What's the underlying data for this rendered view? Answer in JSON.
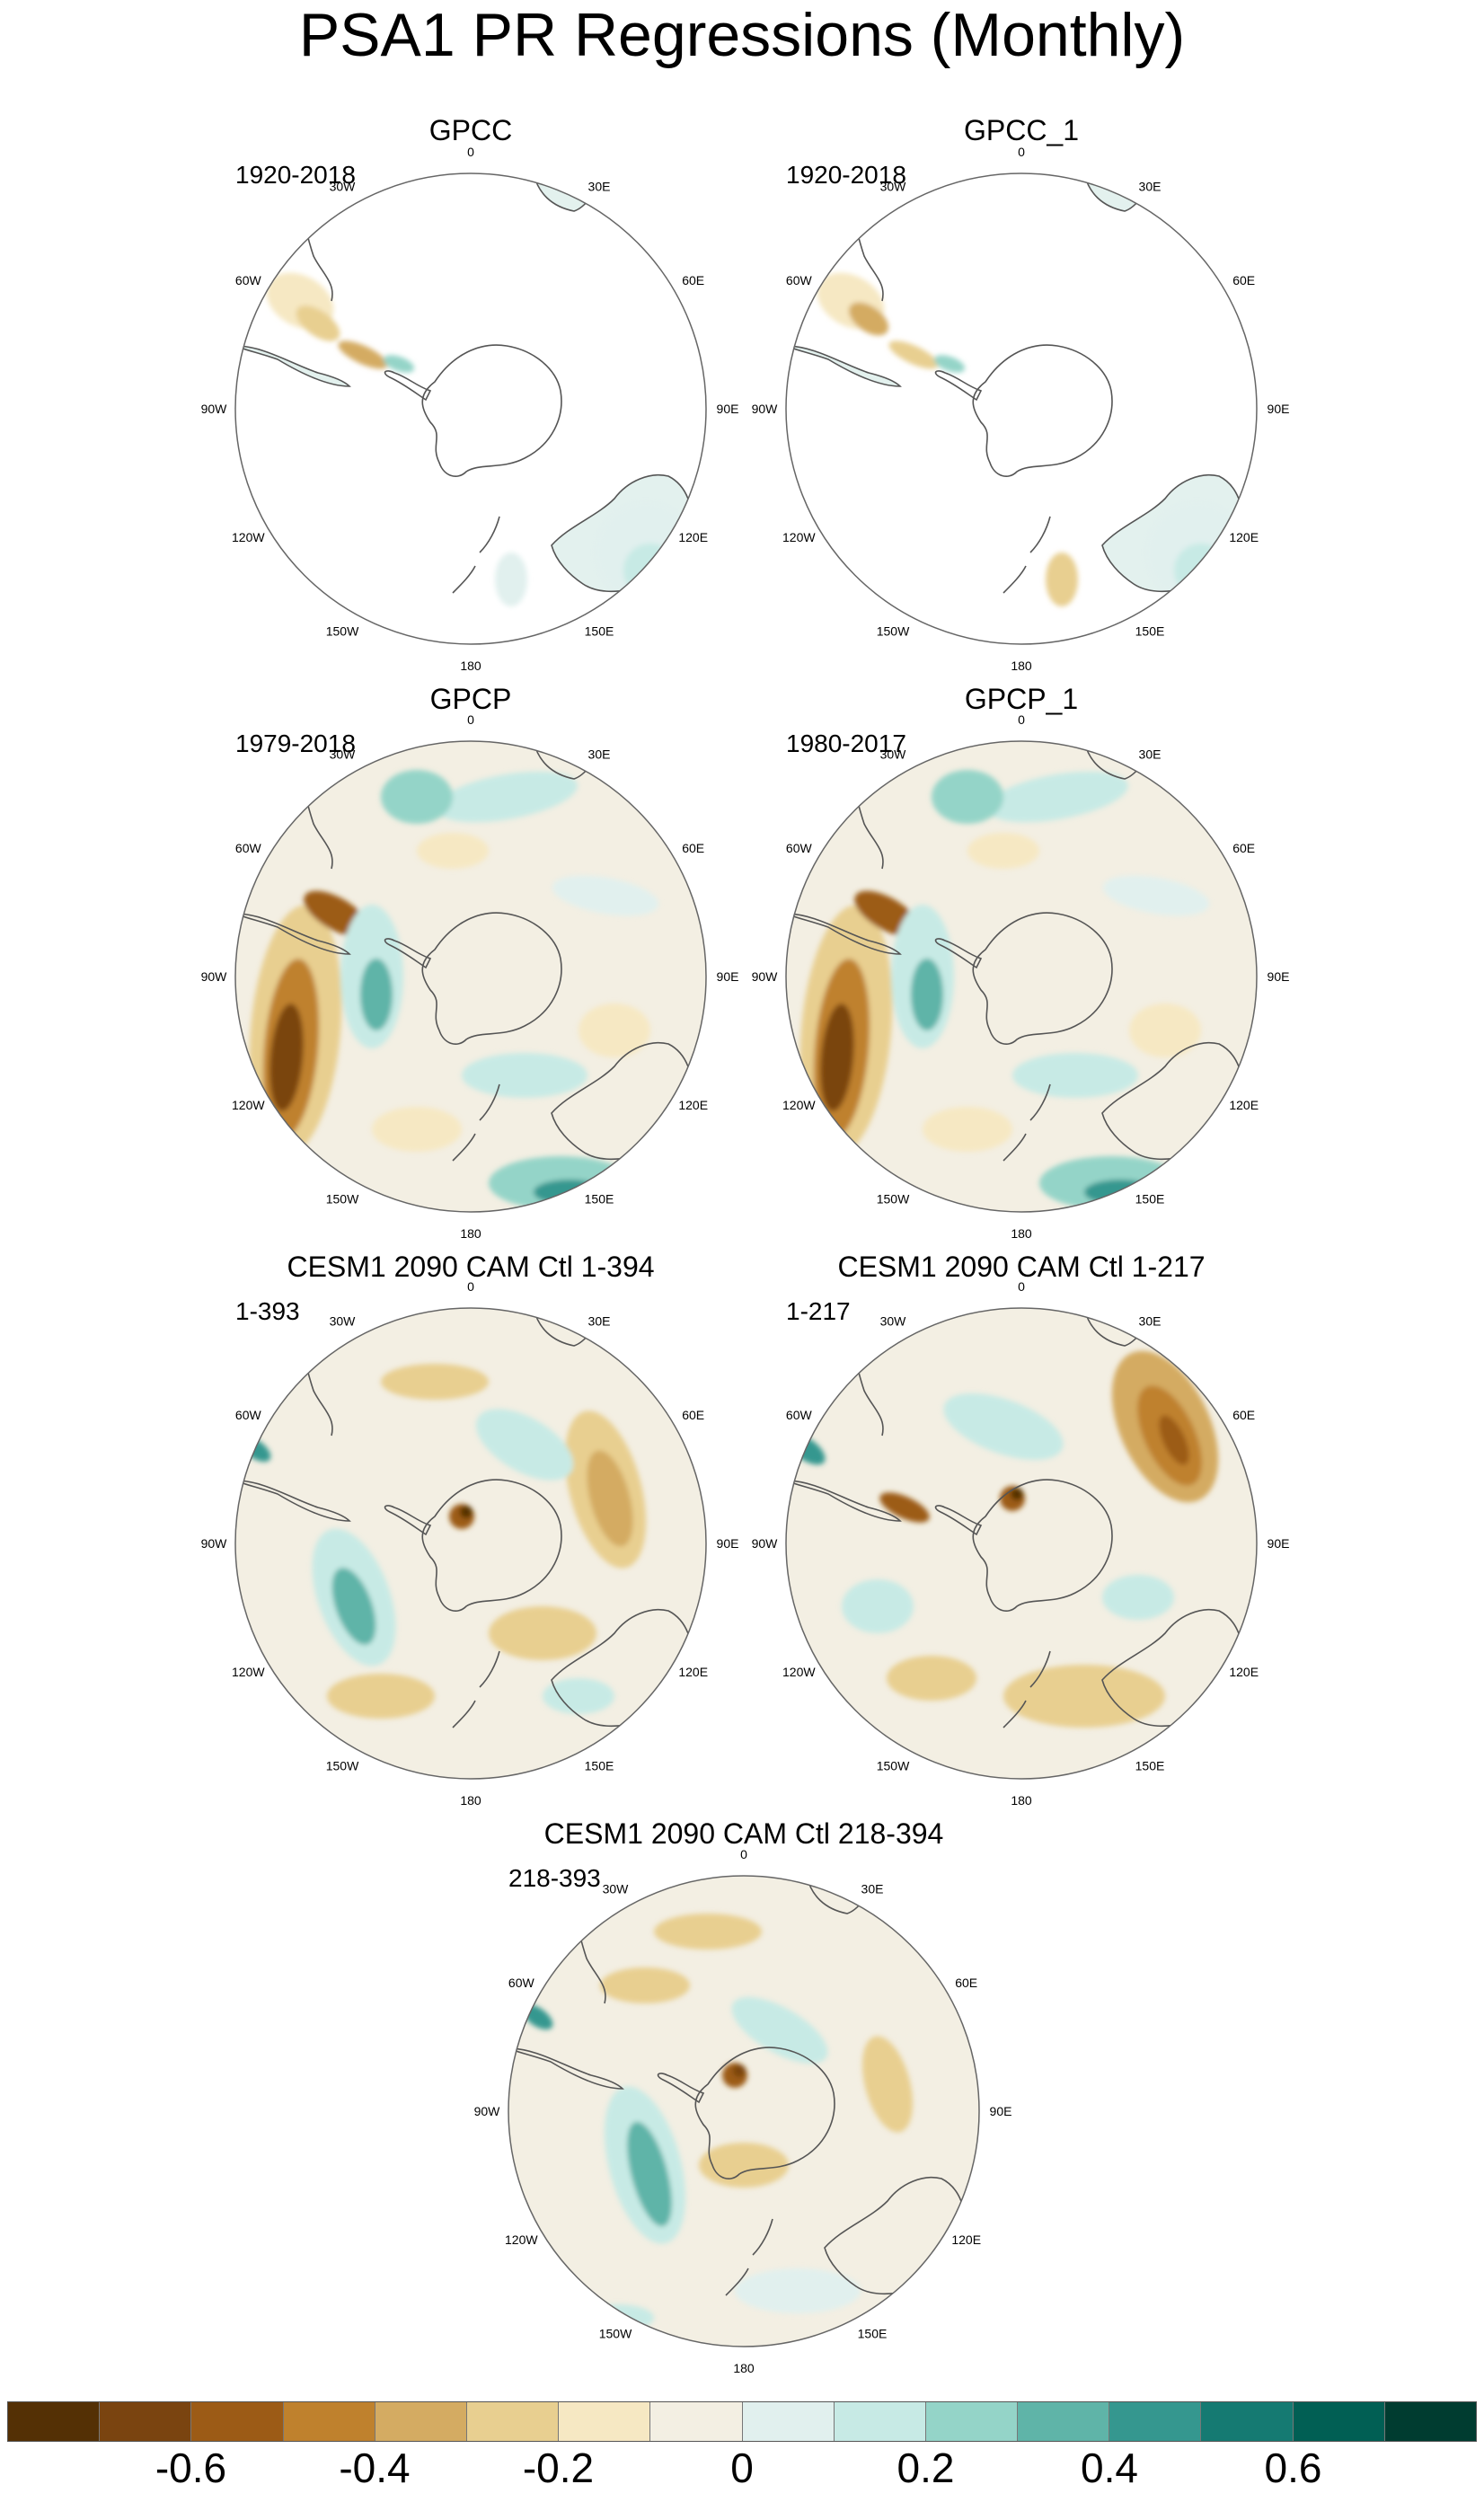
{
  "title": "PSA1 PR Regressions (Monthly)",
  "panels": [
    {
      "name": "GPCC",
      "period": "1920-2018"
    },
    {
      "name": "GPCC_1",
      "period": "1920-2018"
    },
    {
      "name": "GPCP",
      "period": "1979-2018"
    },
    {
      "name": "GPCP_1",
      "period": "1980-2017"
    },
    {
      "name": "CESM1 2090 CAM Ctl 1-394",
      "period": "1-393"
    },
    {
      "name": "CESM1 2090 CAM Ctl 1-217",
      "period": "1-217"
    },
    {
      "name": "CESM1 2090 CAM Ctl 218-394",
      "period": "218-393"
    }
  ],
  "longitude_labels": [
    "0",
    "30E",
    "60E",
    "90E",
    "120E",
    "150E",
    "180",
    "150W",
    "120W",
    "90W",
    "60W",
    "30W"
  ],
  "colorbar": {
    "colors": [
      "#543005",
      "#7a4410",
      "#9c5b16",
      "#bf812d",
      "#d4ab62",
      "#e8cf90",
      "#f6e8c3",
      "#f3efe3",
      "#e1f0ee",
      "#c7eae5",
      "#94d4c8",
      "#5fb4a8",
      "#35978f",
      "#157a72",
      "#015f54",
      "#003c30"
    ],
    "tick_labels": [
      "-0.6",
      "-0.4",
      "-0.2",
      "0",
      "0.2",
      "0.4",
      "0.6"
    ],
    "tick_values": [
      -0.6,
      -0.4,
      -0.2,
      0,
      0.2,
      0.4,
      0.6
    ],
    "range": [
      -0.8,
      0.8
    ]
  },
  "palette": {
    "ocean_neutral": "#f3efe3",
    "coast": "#555555",
    "frame": "#666666"
  }
}
